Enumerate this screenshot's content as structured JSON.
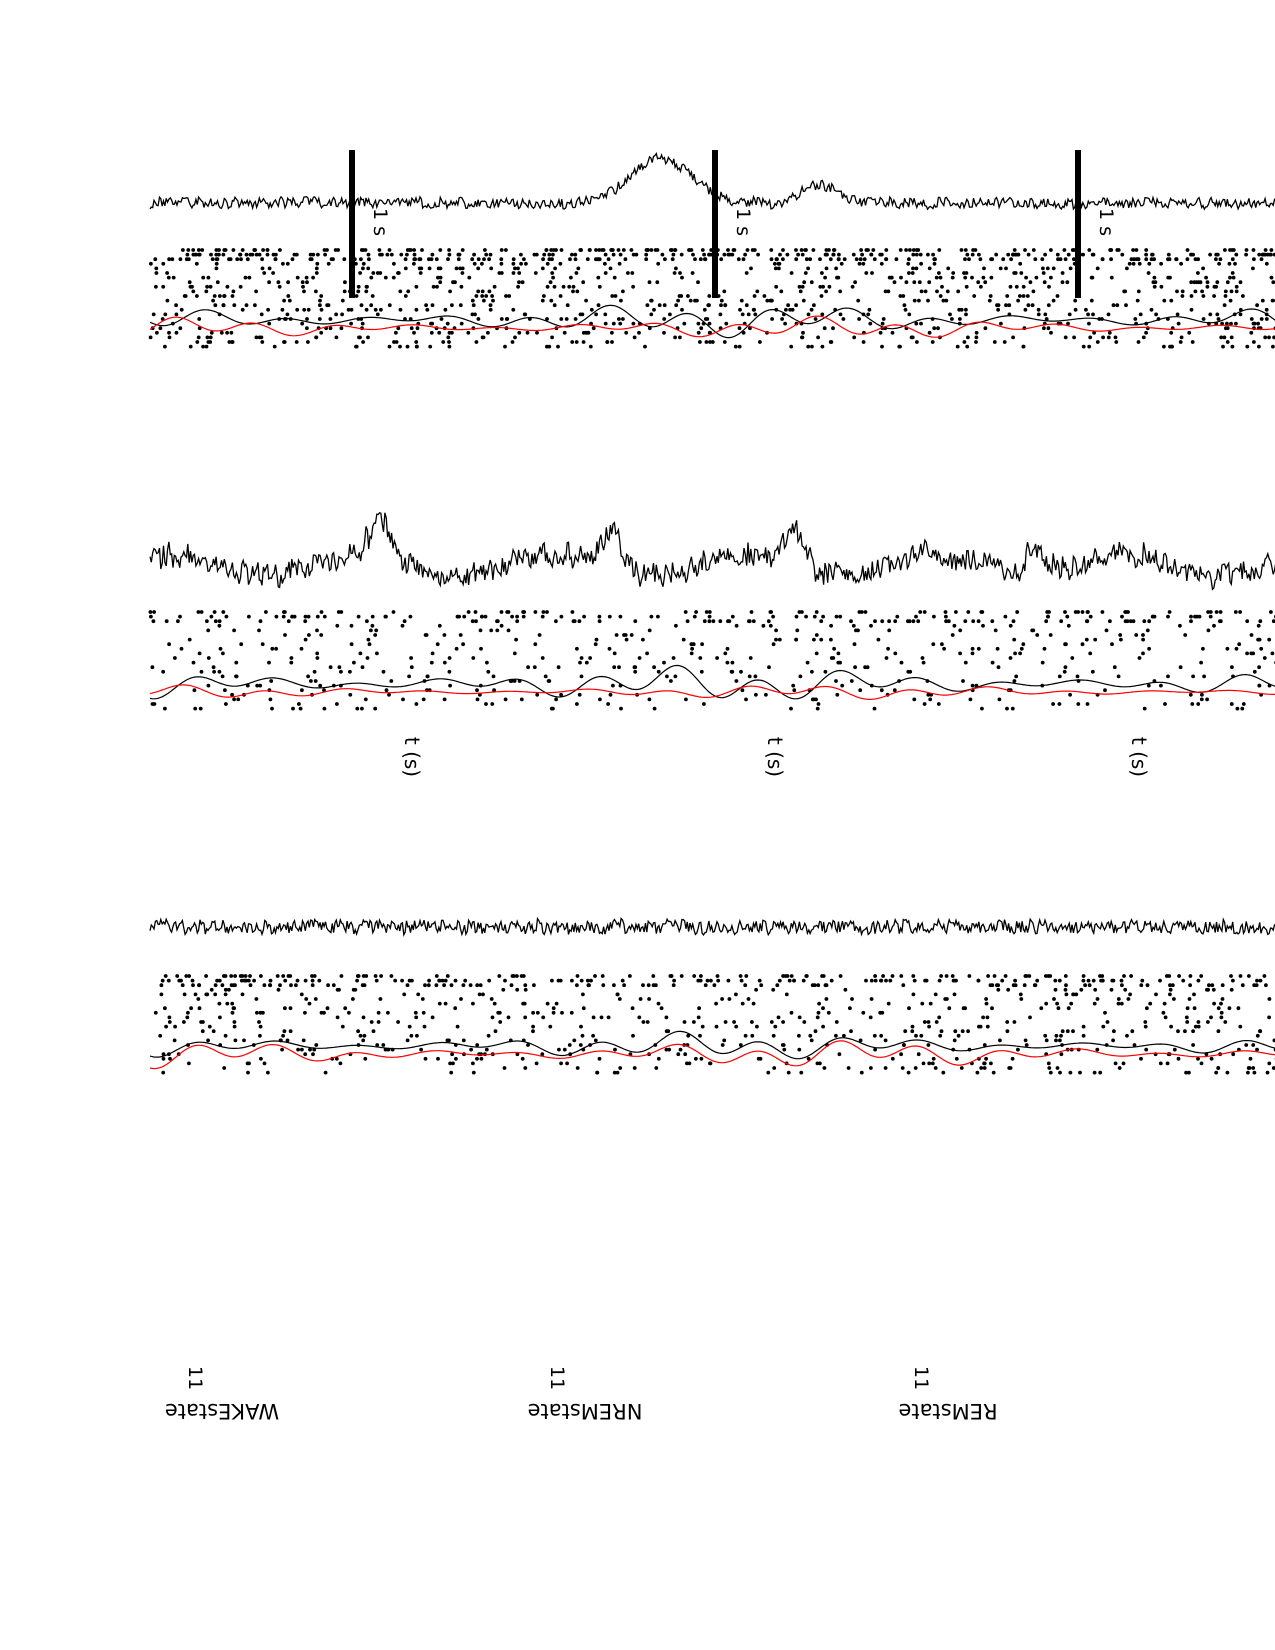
{
  "figure": {
    "orientation": "rotated-180",
    "xlabel": "t (s)",
    "scalebar_label": "1 s",
    "channel_tick": "11",
    "trace_colors": {
      "lfp": "#000000",
      "spikes": "#000000",
      "rate": "#000000",
      "rate_highlight": "#ff0000"
    }
  },
  "chart_data": [
    {
      "type": "line",
      "title": "WAKEstate",
      "xlabel": "t (s)",
      "scalebar": "1 s",
      "channel_label": "11",
      "series": [
        {
          "kind": "lfp",
          "color": "#000000",
          "noise": 7,
          "events": [
            {
              "pos": 0.58,
              "width": 0.035,
              "amp": 45
            },
            {
              "pos": 0.45,
              "width": 0.02,
              "amp": 18
            }
          ]
        },
        {
          "kind": "spike-raster",
          "color": "#000000",
          "density": 0.9
        },
        {
          "kind": "smoothed-rate",
          "color": "#000000",
          "amp": 36
        },
        {
          "kind": "smoothed-rate",
          "color": "#ff0000",
          "amp": 24
        }
      ]
    },
    {
      "type": "line",
      "title": "NREMstate",
      "xlabel": "t (s)",
      "scalebar": "1 s",
      "channel_label": "11",
      "series": [
        {
          "kind": "lfp",
          "color": "#000000",
          "noise": 14,
          "events": [
            {
              "pos": 0.62,
              "width": 0.012,
              "amp": 38
            },
            {
              "pos": 0.47,
              "width": 0.012,
              "amp": 40
            },
            {
              "pos": 0.81,
              "width": 0.012,
              "amp": 36
            },
            {
              "pos": 0.27,
              "width": 0.012,
              "amp": 30
            }
          ]
        },
        {
          "kind": "spike-raster",
          "color": "#000000",
          "density": 0.45
        },
        {
          "kind": "smoothed-rate",
          "color": "#000000",
          "amp": 40
        },
        {
          "kind": "smoothed-rate",
          "color": "#ff0000",
          "amp": 16
        }
      ]
    },
    {
      "type": "line",
      "title": "REMstate",
      "xlabel": "t (s)",
      "scalebar": "1 s",
      "channel_label": "11",
      "series": [
        {
          "kind": "lfp",
          "color": "#000000",
          "noise": 9,
          "events": []
        },
        {
          "kind": "spike-raster",
          "color": "#000000",
          "density": 0.6
        },
        {
          "kind": "smoothed-rate",
          "color": "#000000",
          "amp": 30
        },
        {
          "kind": "smoothed-rate",
          "color": "#ff0000",
          "amp": 30
        }
      ]
    }
  ]
}
